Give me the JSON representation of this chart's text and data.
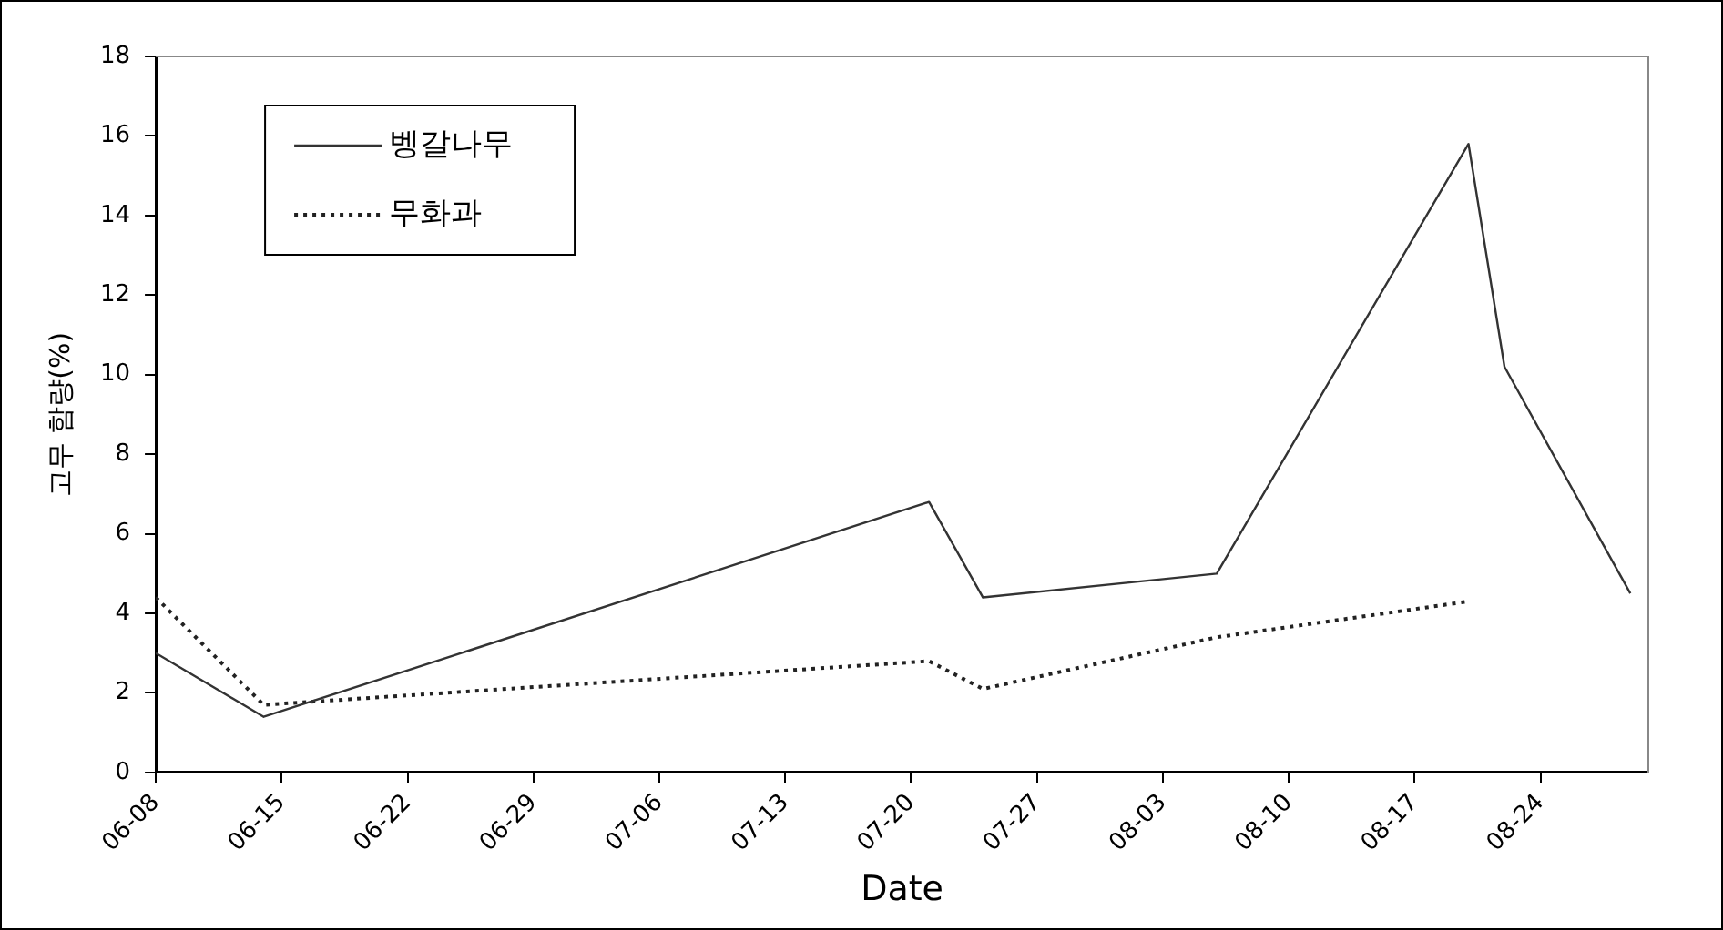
{
  "chart_data": {
    "type": "line",
    "xlabel": "Date",
    "ylabel": "고무 함량(%)",
    "xlim": [
      "--06-08",
      "--08-30"
    ],
    "xticks": [
      {
        "value": "--06-08",
        "label": "06-08"
      },
      {
        "value": "--06-15",
        "label": "06-15"
      },
      {
        "value": "--06-22",
        "label": "06-22"
      },
      {
        "value": "--06-29",
        "label": "06-29"
      },
      {
        "value": "--07-06",
        "label": "07-06"
      },
      {
        "value": "--07-13",
        "label": "07-13"
      },
      {
        "value": "--07-20",
        "label": "07-20"
      },
      {
        "value": "--07-27",
        "label": "07-27"
      },
      {
        "value": "--08-03",
        "label": "08-03"
      },
      {
        "value": "--08-10",
        "label": "08-10"
      },
      {
        "value": "--08-17",
        "label": "08-17"
      },
      {
        "value": "--08-24",
        "label": "08-24"
      }
    ],
    "ylim": [
      0,
      18
    ],
    "yticks": [
      0,
      2,
      4,
      6,
      8,
      10,
      12,
      14,
      16,
      18
    ],
    "grid": false,
    "legend": "top left",
    "marker": "none",
    "series": [
      {
        "name": "벵갈나무",
        "color": "#333333",
        "line_style": "solid",
        "x": [
          "--06-08",
          "--06-14",
          "--07-21",
          "--07-24",
          "--08-06",
          "--08-20",
          "--08-22",
          "--08-29"
        ],
        "values": [
          3.0,
          1.4,
          6.8,
          4.4,
          5.0,
          15.8,
          10.2,
          4.5
        ]
      },
      {
        "name": "무화과",
        "color": "#222222",
        "line_style": "dotted",
        "x": [
          "--06-08",
          "--06-14",
          "--07-21",
          "--07-24",
          "--08-06",
          "--08-20"
        ],
        "values": [
          4.4,
          1.7,
          2.8,
          2.1,
          3.4,
          4.3
        ]
      }
    ]
  }
}
